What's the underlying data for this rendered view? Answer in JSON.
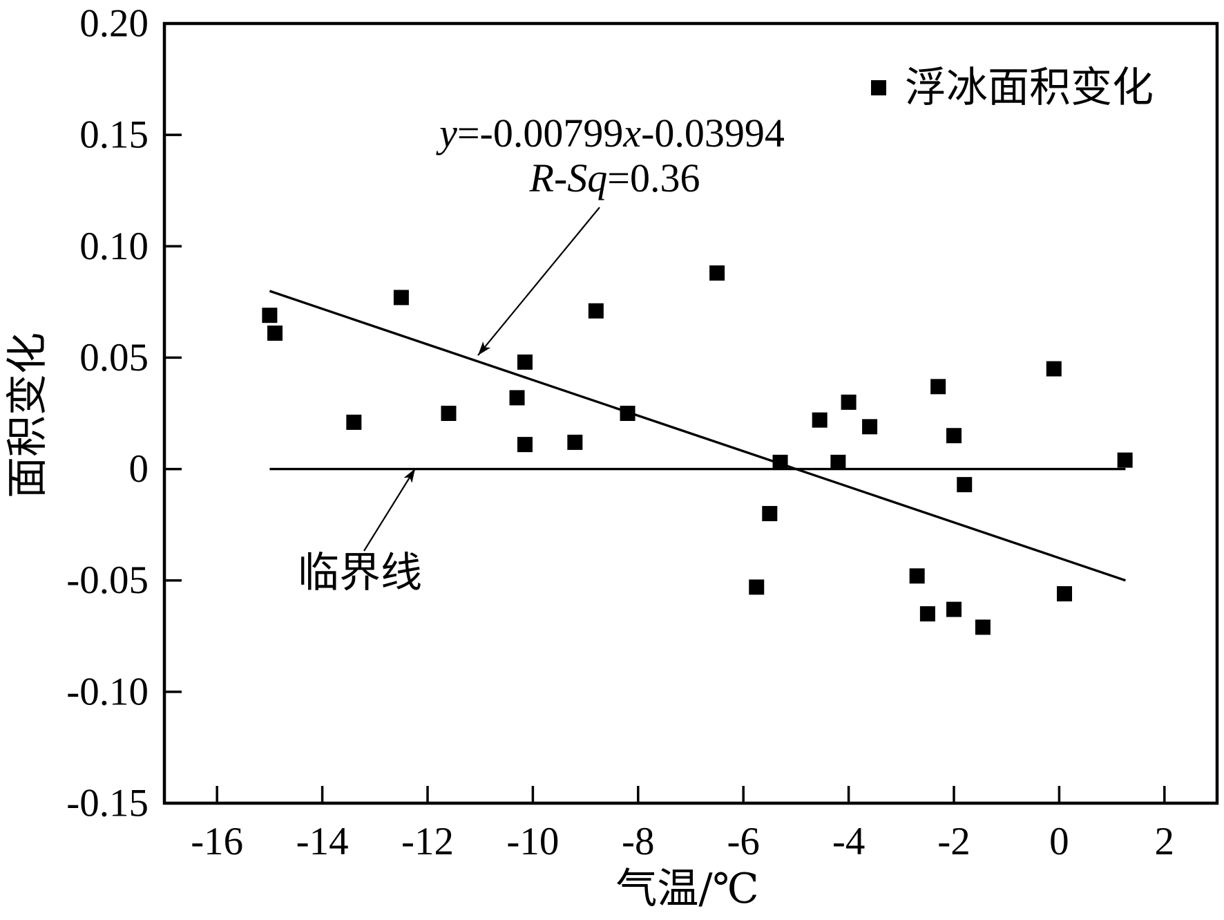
{
  "chart_data": {
    "type": "scatter",
    "xlabel": "气温/℃",
    "ylabel": "面积变化",
    "xlim": [
      -17,
      3
    ],
    "ylim": [
      -0.15,
      0.2
    ],
    "x_ticks": [
      -16,
      -14,
      -12,
      -10,
      -8,
      -6,
      -4,
      -2,
      0,
      2
    ],
    "x_tick_labels": [
      "-16",
      "-14",
      "-12",
      "-10",
      "-8",
      "-6",
      "-4",
      "-2",
      "0",
      "2"
    ],
    "y_ticks": [
      0.2,
      0.15,
      0.1,
      0.05,
      0,
      -0.05,
      -0.1,
      -0.15
    ],
    "y_tick_labels": [
      "0.20",
      "0.15",
      "0.10",
      "0.05",
      "0",
      "-0.05",
      "-0.10",
      "-0.15"
    ],
    "grid": false,
    "legend": {
      "position": "top-right"
    },
    "series": [
      {
        "name": "浮冰面积变化",
        "marker": "square",
        "color": "#000000",
        "points": [
          [
            -15.0,
            0.069
          ],
          [
            -14.9,
            0.061
          ],
          [
            -13.4,
            0.021
          ],
          [
            -12.5,
            0.077
          ],
          [
            -11.6,
            0.025
          ],
          [
            -10.3,
            0.032
          ],
          [
            -10.15,
            0.048
          ],
          [
            -10.15,
            0.011
          ],
          [
            -9.2,
            0.012
          ],
          [
            -8.8,
            0.071
          ],
          [
            -8.2,
            0.025
          ],
          [
            -6.5,
            0.088
          ],
          [
            -5.75,
            -0.053
          ],
          [
            -5.5,
            -0.02
          ],
          [
            -5.3,
            0.003
          ],
          [
            -4.55,
            0.022
          ],
          [
            -4.2,
            0.003
          ],
          [
            -4.0,
            0.03
          ],
          [
            -3.6,
            0.019
          ],
          [
            -2.7,
            -0.048
          ],
          [
            -2.5,
            -0.065
          ],
          [
            -2.3,
            0.037
          ],
          [
            -2.0,
            0.015
          ],
          [
            -2.0,
            -0.063
          ],
          [
            -1.8,
            -0.007
          ],
          [
            -1.45,
            -0.071
          ],
          [
            -0.1,
            0.045
          ],
          [
            0.1,
            -0.056
          ],
          [
            1.25,
            0.004
          ]
        ]
      }
    ],
    "fit_line": {
      "slope": -0.00799,
      "intercept": -0.03994,
      "x_range": [
        -15,
        1.26
      ],
      "equation": "y=-0.00799x-0.03994",
      "r_squared": "R-Sq=0.36"
    },
    "reference_line": {
      "y": 0,
      "x_range": [
        -15,
        1.26
      ],
      "label": "临界线"
    }
  }
}
